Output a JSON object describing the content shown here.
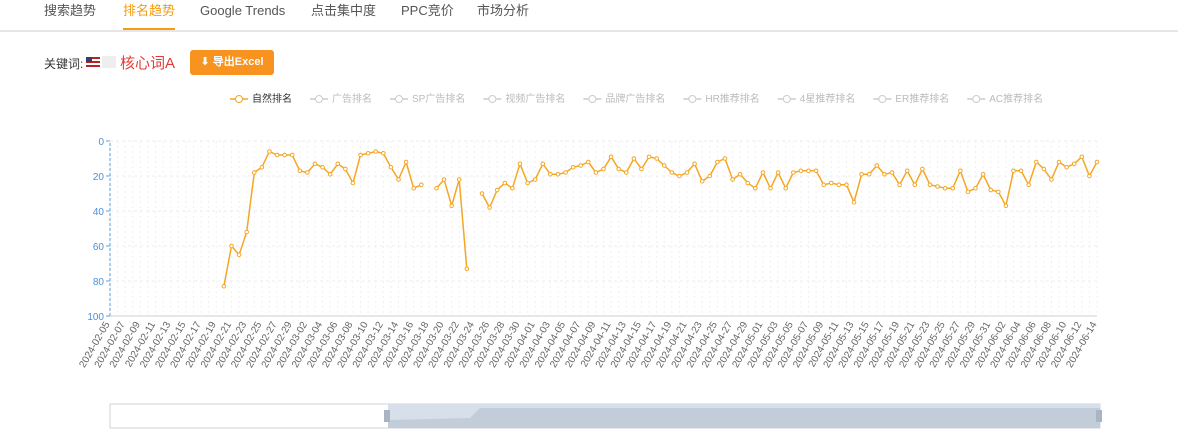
{
  "tabs": {
    "items": [
      "搜索趋势",
      "排名趋势",
      "Google Trends",
      "点击集中度",
      "PPC竞价",
      "市场分析"
    ],
    "active": 1
  },
  "keyword": {
    "label": "关键词:",
    "value": "核心词A"
  },
  "export_button": "导出Excel",
  "chart_data": {
    "type": "line",
    "categories": [
      "2024-02-05",
      null,
      "2024-02-07",
      null,
      "2024-02-09",
      null,
      "2024-02-11",
      null,
      "2024-02-13",
      null,
      "2024-02-15",
      null,
      "2024-02-17",
      null,
      "2024-02-19",
      null,
      "2024-02-21",
      null,
      "2024-02-23",
      null,
      "2024-02-25",
      null,
      "2024-02-27",
      null,
      "2024-02-29",
      null,
      "2024-03-02",
      null,
      "2024-03-04",
      null,
      "2024-03-06",
      null,
      "2024-03-08",
      null,
      "2024-03-10",
      null,
      "2024-03-12",
      null,
      "2024-03-14",
      null,
      "2024-03-16",
      null,
      "2024-03-18",
      null,
      "2024-03-20",
      null,
      "2024-03-22",
      null,
      "2024-03-24",
      null,
      "2024-03-26",
      null,
      "2024-03-28",
      null,
      "2024-03-30",
      null,
      "2024-04-01",
      null,
      "2024-04-03",
      null,
      "2024-04-05",
      null,
      "2024-04-07",
      null,
      "2024-04-09",
      null,
      "2024-04-11",
      null,
      "2024-04-13",
      null,
      "2024-04-15",
      null,
      "2024-04-17",
      null,
      "2024-04-19",
      null,
      "2024-04-21",
      null,
      "2024-04-23",
      null,
      "2024-04-25",
      null,
      "2024-04-27",
      null,
      "2024-04-29",
      null,
      "2024-05-01",
      null,
      "2024-05-03",
      null,
      "2024-05-05",
      null,
      "2024-05-07",
      null,
      "2024-05-09",
      null,
      "2024-05-11",
      null,
      "2024-05-13",
      null,
      "2024-05-15",
      null,
      "2024-05-17",
      null,
      "2024-05-19",
      null,
      "2024-05-21",
      null,
      "2024-05-23",
      null,
      "2024-05-25",
      null,
      "2024-05-27",
      null,
      "2024-05-29",
      null,
      "2024-05-31",
      null,
      "2024-06-02",
      null,
      "2024-06-04",
      null,
      "2024-06-06",
      null,
      "2024-06-08",
      null,
      "2024-06-10",
      null,
      "2024-06-12",
      null,
      "2024-06-14"
    ],
    "series": [
      {
        "name": "自然排名",
        "color": "#f5a623",
        "values": [
          null,
          null,
          null,
          null,
          null,
          null,
          null,
          null,
          null,
          null,
          null,
          null,
          null,
          null,
          null,
          83,
          60,
          65,
          52,
          18,
          15,
          6,
          8,
          8,
          8,
          17,
          18,
          13,
          15,
          19,
          13,
          16,
          24,
          8,
          7,
          6,
          7,
          15,
          22,
          12,
          27,
          25,
          null,
          27,
          22,
          37,
          22,
          73,
          null,
          30,
          38,
          28,
          24,
          27,
          13,
          24,
          22,
          13,
          19,
          19,
          18,
          15,
          14,
          12,
          18,
          16,
          9,
          16,
          18,
          10,
          16,
          9,
          10,
          14,
          18,
          20,
          18,
          13,
          23,
          20,
          12,
          10,
          22,
          19,
          24,
          27,
          18,
          27,
          18,
          27,
          18,
          17,
          17,
          17,
          25,
          24,
          25,
          25,
          35,
          19,
          19,
          14,
          19,
          18,
          25,
          17,
          25,
          16,
          25,
          26,
          27,
          27,
          17,
          29,
          27,
          19,
          28,
          29,
          37,
          17,
          17,
          25,
          12,
          16,
          22,
          12,
          15,
          13,
          9,
          20,
          12
        ]
      }
    ],
    "inactive_series": [
      "广告排名",
      "SP广告排名",
      "视频广告排名",
      "品牌广告排名",
      "HR推荐排名",
      "4星推荐排名",
      "ER推荐排名",
      "AC推荐排名"
    ],
    "ylim": [
      0,
      100
    ],
    "yticks": [
      0,
      20,
      40,
      60,
      80,
      100
    ],
    "y_inverted": true,
    "grid": true
  }
}
